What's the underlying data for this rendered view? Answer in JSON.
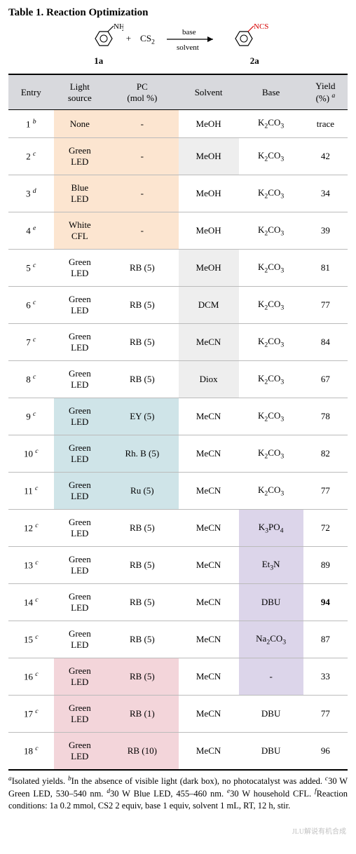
{
  "title": "Table 1. Reaction Optimization",
  "scheme": {
    "label_1a": "1a",
    "label_2a": "2a",
    "nh2": "NH",
    "nh2_sub": "2",
    "plus": "+",
    "cs2": "CS",
    "cs2_sub": "2",
    "base": "base",
    "solvent": "solvent",
    "ncs": "NCS",
    "ncs_color": "#d60000"
  },
  "header": {
    "entry": "Entry",
    "light1": "Light",
    "light2": "source",
    "pc1": "PC",
    "pc2": "(mol %)",
    "solvent": "Solvent",
    "base": "Base",
    "yield1": "Yield",
    "yield2": "(%)"
  },
  "highlights": {
    "orange": "#fce5d0",
    "gray": "#eeeeee",
    "blue": "#cfe4e8",
    "purple": "#dcd5ea",
    "pink": "#f3d5da"
  },
  "rows": [
    {
      "entry": "1",
      "sup": "b",
      "light": "None",
      "pc": "-",
      "solvent": "MeOH",
      "base": "K2CO3",
      "yield": "trace",
      "light_hl": "orange",
      "pc_hl": "orange"
    },
    {
      "entry": "2",
      "sup": "c",
      "light": "Green LED",
      "pc": "-",
      "solvent": "MeOH",
      "base": "K2CO3",
      "yield": "42",
      "light_hl": "orange",
      "pc_hl": "orange",
      "solvent_hl": "gray"
    },
    {
      "entry": "3",
      "sup": "d",
      "light": "Blue LED",
      "pc": "-",
      "solvent": "MeOH",
      "base": "K2CO3",
      "yield": "34",
      "light_hl": "orange",
      "pc_hl": "orange"
    },
    {
      "entry": "4",
      "sup": "e",
      "light": "White CFL",
      "pc": "-",
      "solvent": "MeOH",
      "base": "K2CO3",
      "yield": "39",
      "light_hl": "orange",
      "pc_hl": "orange"
    },
    {
      "entry": "5",
      "sup": "c",
      "light": "Green LED",
      "pc": "RB (5)",
      "solvent": "MeOH",
      "base": "K2CO3",
      "yield": "81",
      "solvent_hl": "gray"
    },
    {
      "entry": "6",
      "sup": "c",
      "light": "Green LED",
      "pc": "RB (5)",
      "solvent": "DCM",
      "base": "K2CO3",
      "yield": "77",
      "solvent_hl": "gray"
    },
    {
      "entry": "7",
      "sup": "c",
      "light": "Green LED",
      "pc": "RB (5)",
      "solvent": "MeCN",
      "base": "K2CO3",
      "yield": "84",
      "solvent_hl": "gray"
    },
    {
      "entry": "8",
      "sup": "c",
      "light": "Green LED",
      "pc": "RB (5)",
      "solvent": "Diox",
      "base": "K2CO3",
      "yield": "67",
      "solvent_hl": "gray"
    },
    {
      "entry": "9",
      "sup": "c",
      "light": "Green LED",
      "pc": "EY (5)",
      "solvent": "MeCN",
      "base": "K2CO3",
      "yield": "78",
      "light_hl": "blue",
      "pc_hl": "blue"
    },
    {
      "entry": "10",
      "sup": "c",
      "light": "Green LED",
      "pc": "Rh. B (5)",
      "solvent": "MeCN",
      "base": "K2CO3",
      "yield": "82",
      "light_hl": "blue",
      "pc_hl": "blue"
    },
    {
      "entry": "11",
      "sup": "c",
      "light": "Green LED",
      "pc": "Ru (5)",
      "solvent": "MeCN",
      "base": "K2CO3",
      "yield": "77",
      "light_hl": "blue",
      "pc_hl": "blue"
    },
    {
      "entry": "12",
      "sup": "c",
      "light": "Green LED",
      "pc": "RB (5)",
      "solvent": "MeCN",
      "base": "K3PO4",
      "yield": "72",
      "base_hl": "purple"
    },
    {
      "entry": "13",
      "sup": "c",
      "light": "Green LED",
      "pc": "RB (5)",
      "solvent": "MeCN",
      "base": "Et3N",
      "yield": "89",
      "base_hl": "purple"
    },
    {
      "entry": "14",
      "sup": "c",
      "light": "Green LED",
      "pc": "RB (5)",
      "solvent": "MeCN",
      "base": "DBU",
      "yield": "94",
      "yield_bold": true,
      "base_hl": "purple"
    },
    {
      "entry": "15",
      "sup": "c",
      "light": "Green LED",
      "pc": "RB (5)",
      "solvent": "MeCN",
      "base": "Na2CO3",
      "yield": "87",
      "base_hl": "purple"
    },
    {
      "entry": "16",
      "sup": "c",
      "light": "Green LED",
      "pc": "RB (5)",
      "solvent": "MeCN",
      "base": "-",
      "yield": "33",
      "light_hl": "pink",
      "pc_hl": "pink",
      "base_hl": "purple"
    },
    {
      "entry": "17",
      "sup": "c",
      "light": "Green LED",
      "pc": "RB (1)",
      "solvent": "MeCN",
      "base": "DBU",
      "yield": "77",
      "light_hl": "pink",
      "pc_hl": "pink"
    },
    {
      "entry": "18",
      "sup": "c",
      "light": "Green LED",
      "pc": "RB (10)",
      "solvent": "MeCN",
      "base": "DBU",
      "yield": "96",
      "light_hl": "pink",
      "pc_hl": "pink"
    }
  ],
  "footnotes": {
    "a": "Isolated yields.",
    "b": "In the absence of visible light (dark box), no photocatalyst was added.",
    "c": "30 W Green LED, 530–540 nm.",
    "d": "30 W Blue LED, 455–460 nm.",
    "e": "30 W household CFL.",
    "f": "Reaction conditions: 1a 0.2 mmol, CS2 2 equiv, base 1 equiv, solvent 1 mL, RT, 12 h, stir."
  },
  "watermark": "JLU解说有机合成"
}
